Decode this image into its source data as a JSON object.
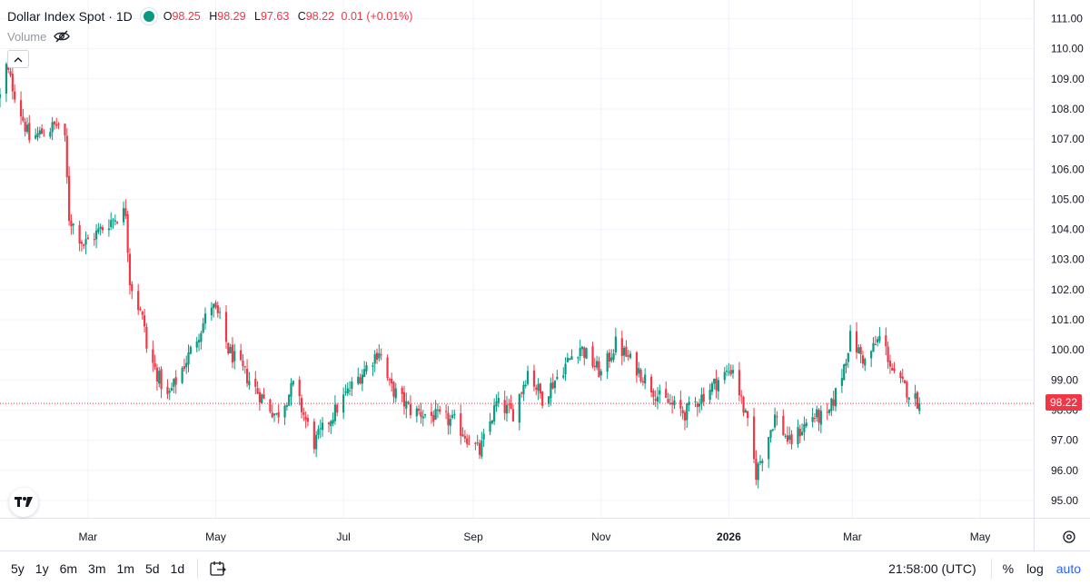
{
  "header": {
    "symbol": "Dollar Index Spot · 1D",
    "open_label": "O",
    "open_value": "98.25",
    "high_label": "H",
    "high_value": "98.29",
    "low_label": "L",
    "low_value": "97.63",
    "close_label": "C",
    "close_value": "98.22",
    "change": "0.01 (+0.01%)",
    "volume_label": "Volume"
  },
  "colors": {
    "up": "#089981",
    "down": "#f23645",
    "grid": "#f0f3fa",
    "axis_text": "#131722"
  },
  "price_axis": {
    "ticks": [
      "111.00",
      "110.00",
      "109.00",
      "108.00",
      "107.00",
      "106.00",
      "105.00",
      "104.00",
      "103.00",
      "102.00",
      "101.00",
      "100.00",
      "99.00",
      "98.00",
      "97.00",
      "96.00",
      "95.00"
    ],
    "last_price": "98.22"
  },
  "time_axis": {
    "labels": [
      "Mar",
      "May",
      "Jul",
      "Sep",
      "Nov",
      "2026",
      "Mar",
      "May"
    ]
  },
  "bottom_bar": {
    "ranges": [
      "5y",
      "1y",
      "6m",
      "3m",
      "1m",
      "5d",
      "1d"
    ],
    "clock": "21:58:00 (UTC)",
    "percent": "%",
    "log": "log",
    "auto": "auto"
  },
  "chart_data": {
    "type": "candlestick",
    "title": "Dollar Index Spot · 1D",
    "xlabel": "",
    "ylabel": "",
    "ylim": [
      94.5,
      111.3
    ],
    "last_price": 98.22,
    "x_tick_labels": [
      "Mar",
      "May",
      "Jul",
      "Sep",
      "Nov",
      "2026",
      "Mar",
      "May"
    ],
    "y_tick_labels": [
      "111.00",
      "110.00",
      "109.00",
      "108.00",
      "107.00",
      "106.00",
      "105.00",
      "104.00",
      "103.00",
      "102.00",
      "101.00",
      "100.00",
      "99.00",
      "98.00",
      "97.00",
      "96.00",
      "95.00"
    ],
    "grid": true,
    "close_trend": [
      [
        "2025-01-31",
        108.4
      ],
      [
        "2025-02-03",
        109.4
      ],
      [
        "2025-02-14",
        107.0
      ],
      [
        "2025-02-28",
        107.5
      ],
      [
        "2025-03-03",
        106.9
      ],
      [
        "2025-03-05",
        104.4
      ],
      [
        "2025-03-12",
        103.5
      ],
      [
        "2025-03-25",
        104.3
      ],
      [
        "2025-04-01",
        104.6
      ],
      [
        "2025-04-03",
        102.3
      ],
      [
        "2025-04-10",
        100.8
      ],
      [
        "2025-04-11",
        100.0
      ],
      [
        "2025-04-21",
        98.4
      ],
      [
        "2025-05-01",
        99.8
      ],
      [
        "2025-05-12",
        101.5
      ],
      [
        "2025-05-16",
        101.0
      ],
      [
        "2025-05-20",
        100.0
      ],
      [
        "2025-06-02",
        98.7
      ],
      [
        "2025-06-12",
        97.8
      ],
      [
        "2025-06-20",
        98.8
      ],
      [
        "2025-06-30",
        96.9
      ],
      [
        "2025-07-15",
        98.5
      ],
      [
        "2025-07-31",
        100.0
      ],
      [
        "2025-08-05",
        98.8
      ],
      [
        "2025-08-15",
        98.0
      ],
      [
        "2025-09-05",
        97.6
      ],
      [
        "2025-09-17",
        96.6
      ],
      [
        "2025-09-25",
        98.2
      ],
      [
        "2025-10-03",
        97.9
      ],
      [
        "2025-10-10",
        99.3
      ],
      [
        "2025-10-17",
        98.4
      ],
      [
        "2025-10-31",
        99.8
      ],
      [
        "2025-11-04",
        100.1
      ],
      [
        "2025-11-14",
        99.2
      ],
      [
        "2025-11-21",
        100.2
      ],
      [
        "2025-12-01",
        99.4
      ],
      [
        "2025-12-12",
        98.4
      ],
      [
        "2025-12-24",
        97.9
      ],
      [
        "2026-01-09",
        99.0
      ],
      [
        "2026-01-16",
        99.4
      ],
      [
        "2026-01-23",
        97.5
      ],
      [
        "2026-01-27",
        95.9
      ],
      [
        "2026-02-05",
        97.8
      ],
      [
        "2026-02-12",
        96.9
      ],
      [
        "2026-02-23",
        97.8
      ],
      [
        "2026-03-02",
        97.7
      ],
      [
        "2026-03-09",
        99.2
      ],
      [
        "2026-03-13",
        100.4
      ],
      [
        "2026-03-20",
        99.6
      ],
      [
        "2026-03-27",
        100.4
      ],
      [
        "2026-03-30",
        100.0
      ],
      [
        "2026-04-03",
        99.1
      ],
      [
        "2026-04-10",
        98.6
      ],
      [
        "2026-04-15",
        98.22
      ]
    ]
  }
}
